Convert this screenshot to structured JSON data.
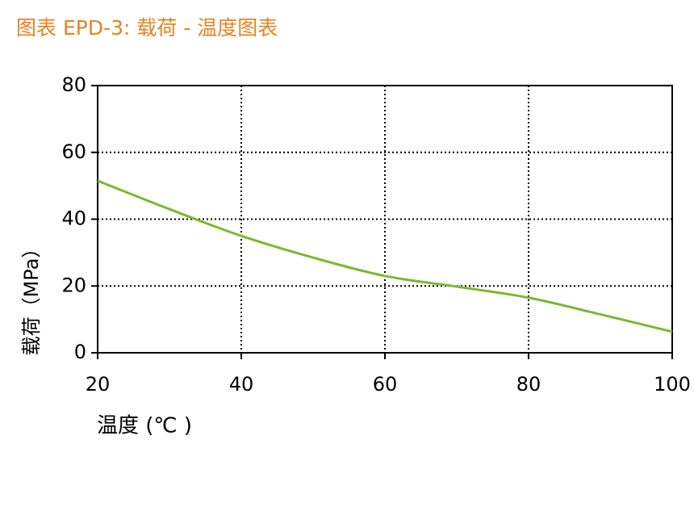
{
  "chart_data": {
    "type": "line",
    "title": "图表 EPD-3: 载荷 - 温度图表",
    "x_label": "温度 (℃ )",
    "y_label": "载荷（MPa）",
    "x": [
      20,
      30,
      40,
      50,
      60,
      70,
      80,
      90,
      100
    ],
    "series": [
      {
        "name": "载荷",
        "color": "#7cb82f",
        "values": [
          51.5,
          43,
          35,
          28.5,
          23,
          19.8,
          16.5,
          11.5,
          6.3
        ]
      }
    ],
    "xlim": [
      20,
      100
    ],
    "xticks": [
      20,
      40,
      60,
      80,
      100
    ],
    "ylim": [
      0,
      80
    ],
    "yticks": [
      0,
      20,
      40,
      60,
      80
    ],
    "grid": true,
    "title_color": "#e8821e"
  }
}
